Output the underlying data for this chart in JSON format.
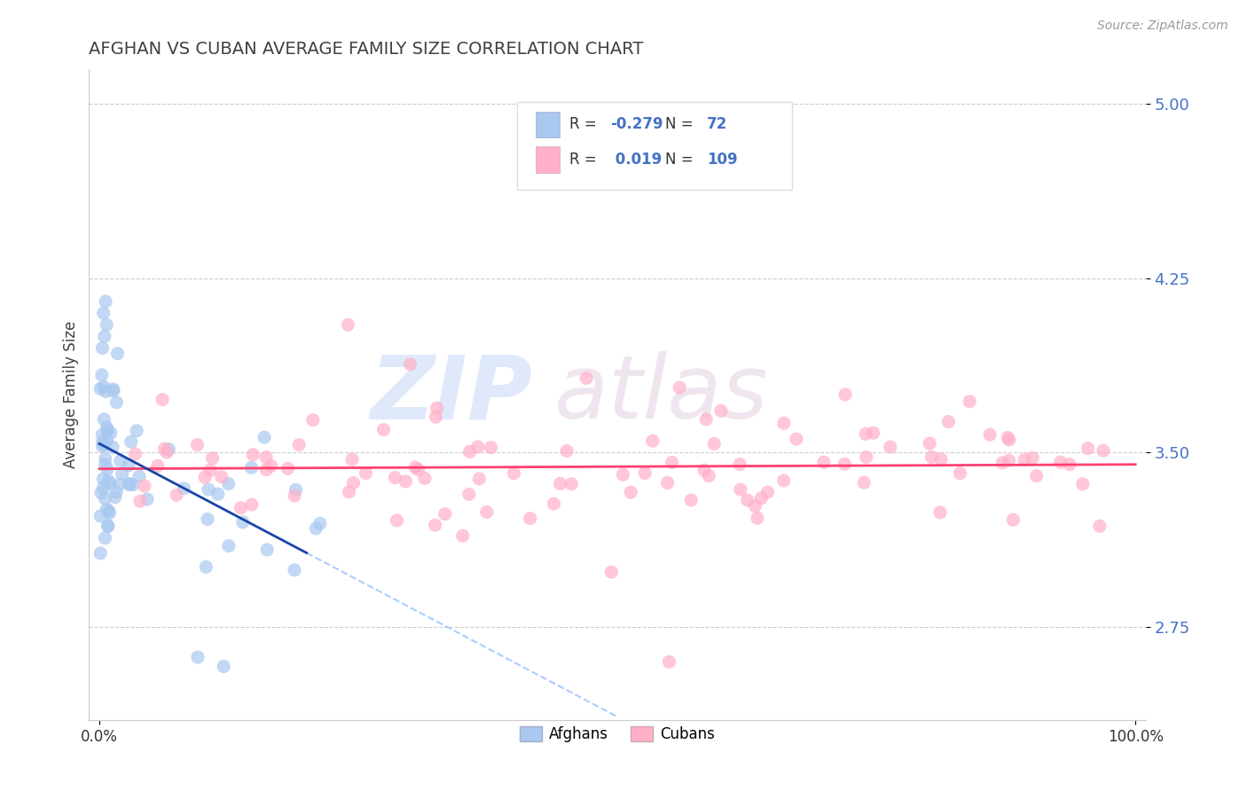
{
  "title": "AFGHAN VS CUBAN AVERAGE FAMILY SIZE CORRELATION CHART",
  "source": "Source: ZipAtlas.com",
  "ylabel": "Average Family Size",
  "afghan_R": -0.279,
  "afghan_N": 72,
  "cuban_R": 0.019,
  "cuban_N": 109,
  "xlim": [
    -0.01,
    1.01
  ],
  "ylim": [
    2.35,
    5.15
  ],
  "yticks": [
    2.75,
    3.5,
    4.25,
    5.0
  ],
  "ytick_labels": [
    "2.75",
    "3.50",
    "4.25",
    "5.00"
  ],
  "xtick_labels": [
    "0.0%",
    "100.0%"
  ],
  "ytick_color": "#4472C4",
  "title_color": "#404040",
  "title_fontsize": 14,
  "afghan_color": "#A8C8F0",
  "cuban_color": "#FFB0C8",
  "afghan_line_color": "#1A44AA",
  "cuban_line_color": "#FF4070",
  "dashed_line_color": "#AACCFF",
  "legend_label_1": "Afghans",
  "legend_label_2": "Cubans"
}
